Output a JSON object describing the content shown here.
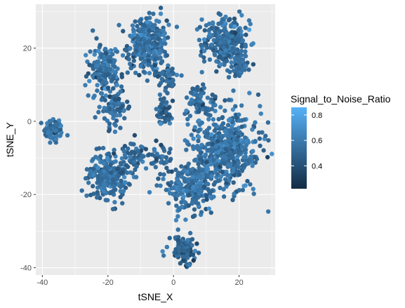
{
  "chart_data": {
    "type": "scatter",
    "xlabel": "tSNE_X",
    "ylabel": "tSNE_Y",
    "xlim": [
      -42,
      31
    ],
    "ylim": [
      -42,
      32
    ],
    "x_ticks": [
      -40,
      -20,
      0,
      20
    ],
    "y_ticks": [
      -40,
      -20,
      0,
      20
    ],
    "x_tick_labels": [
      "-40",
      "-20",
      "0",
      "20"
    ],
    "y_tick_labels": [
      "-40",
      "-20",
      "0",
      "20"
    ],
    "grid": true,
    "panel_background": "#EBEBEB",
    "grid_color": "#FFFFFF",
    "legend": {
      "title": "Signal_to_Noise_Ratio",
      "position": "right",
      "range": [
        0.22,
        0.86
      ],
      "low_color": "#132B43",
      "high_color": "#56B1F7",
      "breaks": [
        0.8,
        0.6,
        0.4
      ],
      "break_labels": [
        "0.8",
        "0.6",
        "0.4"
      ]
    },
    "clusters": [
      {
        "center": [
          -36.5,
          -2.5
        ],
        "spread": [
          2.5,
          3
        ],
        "n": 70,
        "mean": 0.56
      },
      {
        "center": [
          -8,
          21
        ],
        "spread": [
          5,
          6
        ],
        "n": 320,
        "mean": 0.55
      },
      {
        "center": [
          -21,
          14
        ],
        "spread": [
          4,
          6
        ],
        "n": 160,
        "mean": 0.54
      },
      {
        "center": [
          -18,
          4
        ],
        "spread": [
          4,
          5
        ],
        "n": 80,
        "mean": 0.53
      },
      {
        "center": [
          16,
          22
        ],
        "spread": [
          6,
          6
        ],
        "n": 260,
        "mean": 0.56
      },
      {
        "center": [
          20,
          16
        ],
        "spread": [
          3,
          3
        ],
        "n": 60,
        "mean": 0.52
      },
      {
        "center": [
          -20,
          -15
        ],
        "spread": [
          5,
          5
        ],
        "n": 230,
        "mean": 0.55
      },
      {
        "center": [
          -12,
          -9
        ],
        "spread": [
          3,
          3
        ],
        "n": 50,
        "mean": 0.5
      },
      {
        "center": [
          -2,
          12
        ],
        "spread": [
          3,
          3
        ],
        "n": 45,
        "mean": 0.52
      },
      {
        "center": [
          -3,
          3
        ],
        "spread": [
          2.5,
          3
        ],
        "n": 40,
        "mean": 0.5
      },
      {
        "center": [
          8,
          6
        ],
        "spread": [
          4,
          4
        ],
        "n": 70,
        "mean": 0.52
      },
      {
        "center": [
          16,
          -8
        ],
        "spread": [
          9,
          9
        ],
        "n": 520,
        "mean": 0.56
      },
      {
        "center": [
          5,
          -18
        ],
        "spread": [
          6,
          5
        ],
        "n": 220,
        "mean": 0.55
      },
      {
        "center": [
          3,
          -35
        ],
        "spread": [
          3,
          3
        ],
        "n": 110,
        "mean": 0.48
      },
      {
        "center": [
          -4,
          -10
        ],
        "spread": [
          3,
          3
        ],
        "n": 40,
        "mean": 0.52
      }
    ]
  }
}
